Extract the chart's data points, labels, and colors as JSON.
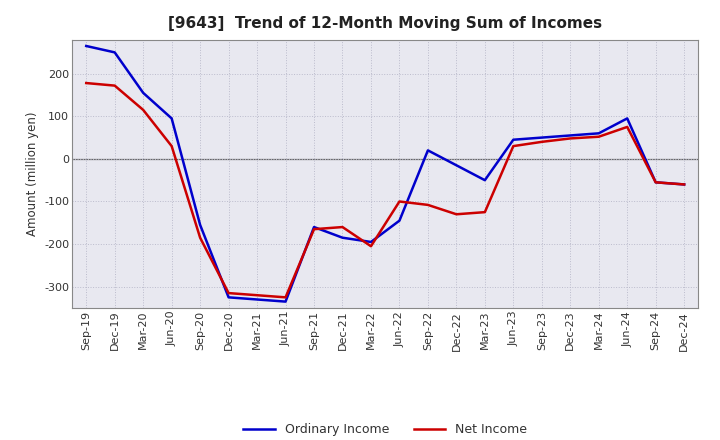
{
  "title": "[9643]  Trend of 12-Month Moving Sum of Incomes",
  "ylabel": "Amount (million yen)",
  "background_color": "#ffffff",
  "plot_bg_color": "#e8e8f0",
  "grid_color": "#bbbbcc",
  "x_labels": [
    "Sep-19",
    "Dec-19",
    "Mar-20",
    "Jun-20",
    "Sep-20",
    "Dec-20",
    "Mar-21",
    "Jun-21",
    "Sep-21",
    "Dec-21",
    "Mar-22",
    "Jun-22",
    "Sep-22",
    "Dec-22",
    "Mar-23",
    "Jun-23",
    "Sep-23",
    "Dec-23",
    "Mar-24",
    "Jun-24",
    "Sep-24",
    "Dec-24"
  ],
  "ordinary_income": [
    265,
    250,
    155,
    95,
    -155,
    -325,
    -330,
    -335,
    -160,
    -185,
    -195,
    -145,
    20,
    -15,
    -50,
    45,
    50,
    55,
    60,
    95,
    -55,
    -60
  ],
  "net_income": [
    178,
    172,
    115,
    30,
    -185,
    -315,
    -320,
    -325,
    -165,
    -160,
    -205,
    -100,
    -108,
    -130,
    -125,
    30,
    40,
    48,
    52,
    75,
    -55,
    -60
  ],
  "ordinary_color": "#0000cc",
  "net_color": "#cc0000",
  "ylim": [
    -350,
    280
  ],
  "yticks": [
    -300,
    -200,
    -100,
    0,
    100,
    200
  ],
  "line_width": 1.8,
  "legend_labels": [
    "Ordinary Income",
    "Net Income"
  ],
  "title_fontsize": 11,
  "axis_fontsize": 8.5,
  "tick_fontsize": 8
}
